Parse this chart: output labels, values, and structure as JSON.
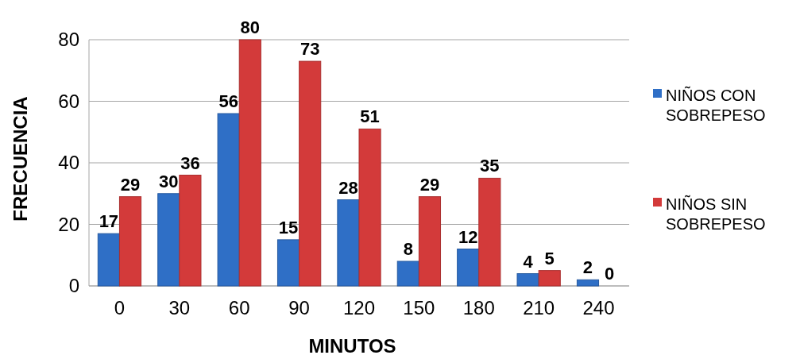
{
  "chart_data": {
    "type": "bar",
    "xlabel": "MINUTOS",
    "ylabel": "FRECUENCIA",
    "categories": [
      "0",
      "30",
      "60",
      "90",
      "120",
      "150",
      "180",
      "210",
      "240"
    ],
    "series": [
      {
        "name": "NIÑOS CON SOBREPESO",
        "color": "#2f6fc6",
        "values": [
          17,
          30,
          56,
          15,
          28,
          8,
          12,
          4,
          2
        ]
      },
      {
        "name": "NIÑOS SIN SOBREPESO",
        "color": "#d33a3a",
        "values": [
          29,
          36,
          80,
          73,
          51,
          29,
          35,
          5,
          0
        ]
      }
    ],
    "ylim": [
      0,
      80
    ],
    "yticks": [
      0,
      20,
      40,
      60,
      80
    ],
    "grid": "y",
    "legend": "right",
    "data_labels": true
  }
}
